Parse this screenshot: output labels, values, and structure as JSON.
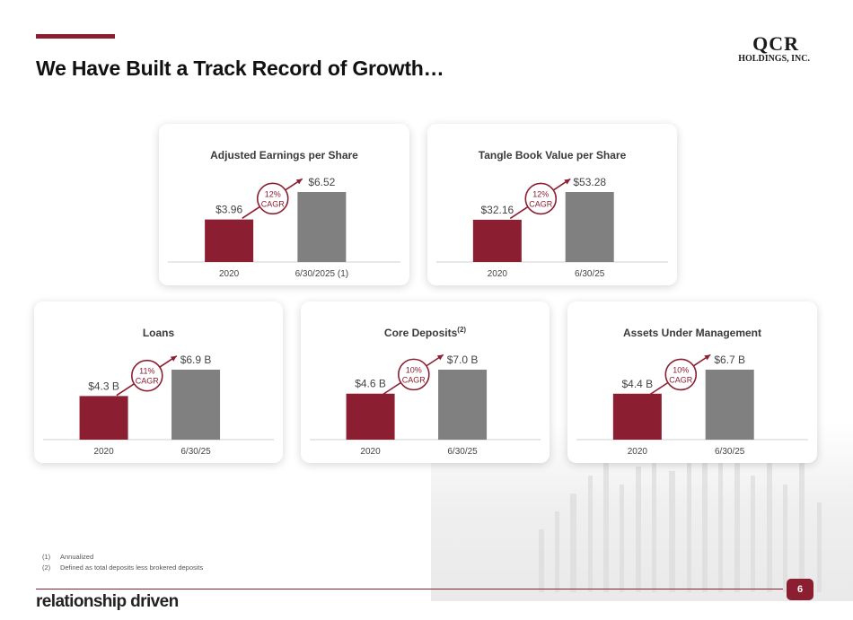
{
  "header": {
    "title": "We Have Built a Track Record of Growth…",
    "logo_main": "QCR",
    "logo_sub": "HOLDINGS, INC."
  },
  "colors": {
    "accent": "#8b1f31",
    "bar_2020": "#8b1f31",
    "bar_current": "#808080"
  },
  "chart_data": [
    {
      "type": "bar",
      "title": "Adjusted Earnings per Share",
      "title_sup": "",
      "categories": [
        "2020",
        "6/30/2025 (1)"
      ],
      "values": [
        3.96,
        6.52
      ],
      "value_labels": [
        "$3.96",
        "$6.52"
      ],
      "cagr": [
        "12%",
        "CAGR"
      ]
    },
    {
      "type": "bar",
      "title": "Tangle Book Value per Share",
      "title_sup": "",
      "categories": [
        "2020",
        "6/30/25"
      ],
      "values": [
        32.16,
        53.28
      ],
      "value_labels": [
        "$32.16",
        "$53.28"
      ],
      "cagr": [
        "12%",
        "CAGR"
      ]
    },
    {
      "type": "bar",
      "title": "Loans",
      "title_sup": "",
      "categories": [
        "2020",
        "6/30/25"
      ],
      "values": [
        4.3,
        6.9
      ],
      "value_labels": [
        "$4.3 B",
        "$6.9 B"
      ],
      "cagr": [
        "11%",
        "CAGR"
      ]
    },
    {
      "type": "bar",
      "title": "Core Deposits",
      "title_sup": "(2)",
      "categories": [
        "2020",
        "6/30/25"
      ],
      "values": [
        4.6,
        7.0
      ],
      "value_labels": [
        "$4.6 B",
        "$7.0 B"
      ],
      "cagr": [
        "10%",
        "CAGR"
      ]
    },
    {
      "type": "bar",
      "title": "Assets Under Management",
      "title_sup": "",
      "categories": [
        "2020",
        "6/30/25"
      ],
      "values": [
        4.4,
        6.7
      ],
      "value_labels": [
        "$4.4 B",
        "$6.7 B"
      ],
      "cagr": [
        "10%",
        "CAGR"
      ]
    }
  ],
  "footnotes": [
    {
      "num": "(1)",
      "text": "Annualized"
    },
    {
      "num": "(2)",
      "text": "Defined as total deposits less brokered deposits"
    }
  ],
  "footer": {
    "tagline": "relationship driven",
    "page_number": "6"
  }
}
